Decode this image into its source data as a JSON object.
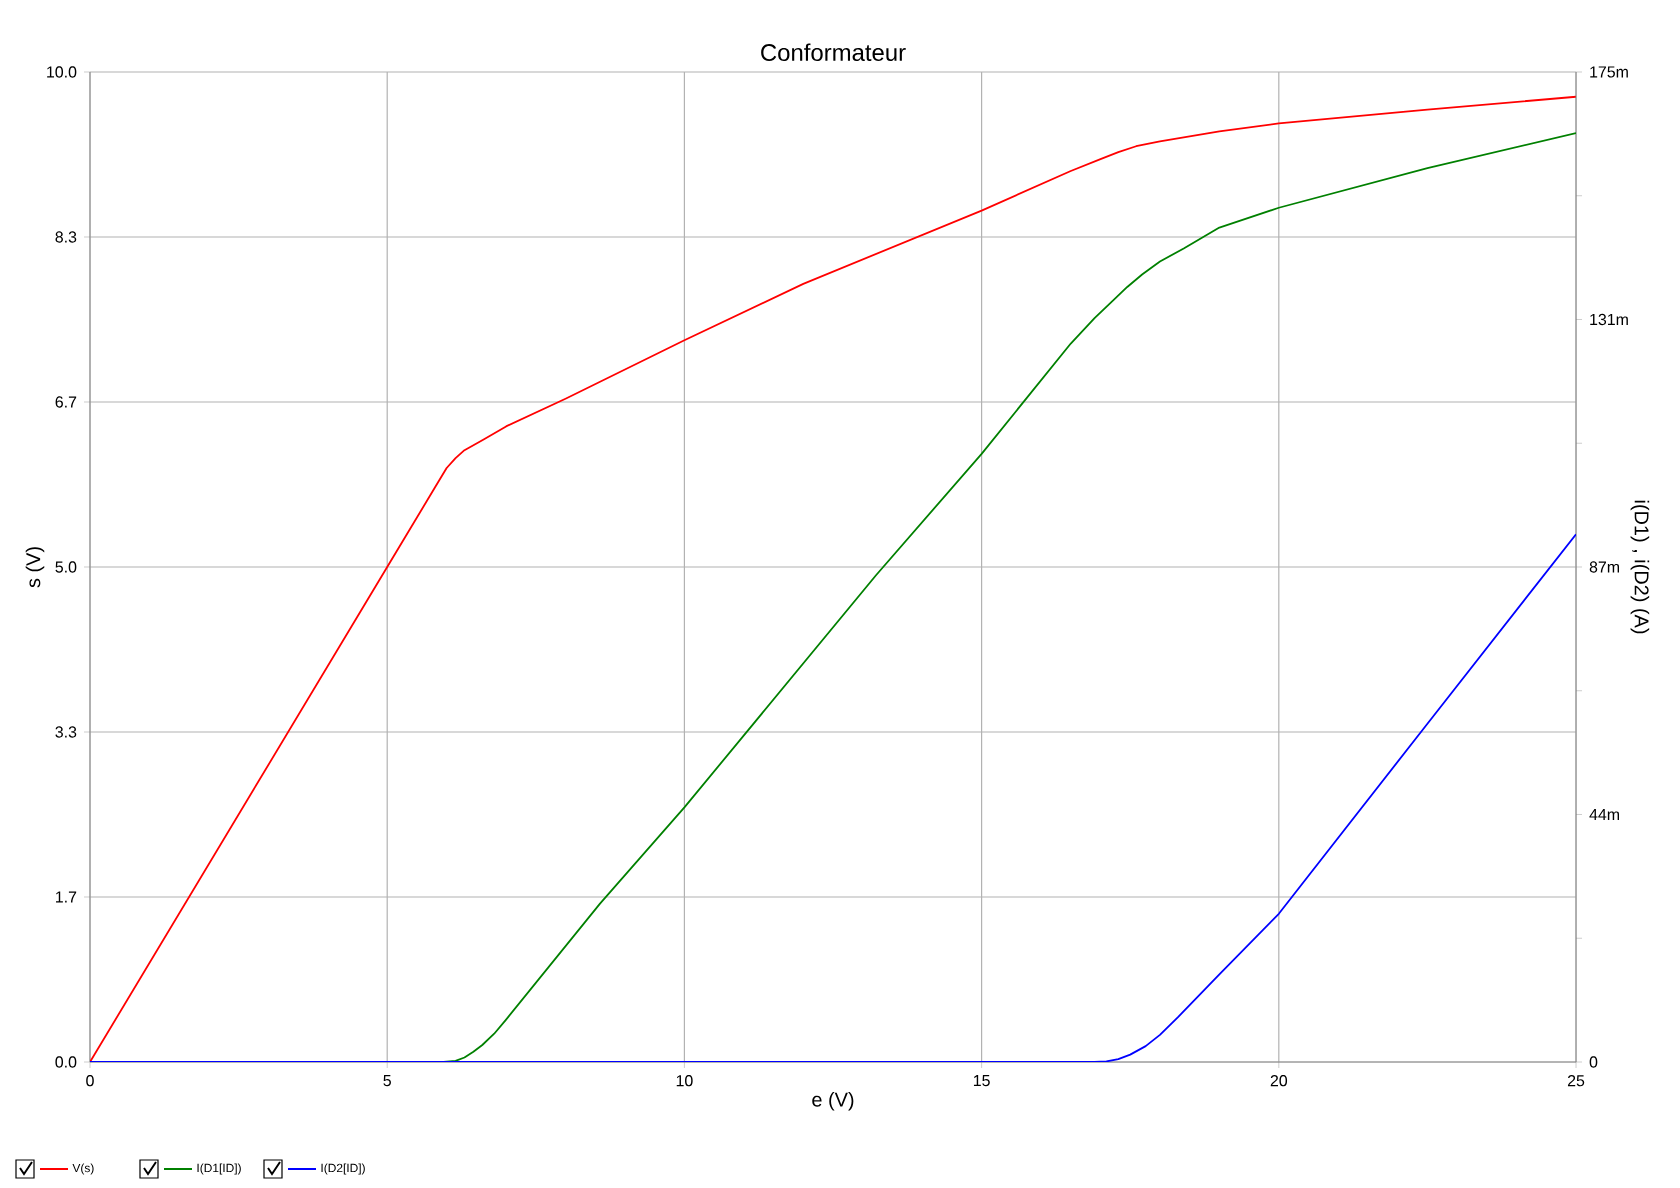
{
  "chart_data": {
    "type": "line",
    "title": "Conformateur",
    "xlabel": "e (V)",
    "ylabel": "s (V)",
    "y2label": "i(D1) , i(D2) (A)",
    "xlim": [
      0,
      25
    ],
    "ylim": [
      0,
      10
    ],
    "y2lim": [
      0,
      175
    ],
    "xticks": [
      0,
      5,
      10,
      15,
      20,
      25
    ],
    "yticks": [
      {
        "value": 0,
        "label": "0.0"
      },
      {
        "value": 1.6667,
        "label": "1.7"
      },
      {
        "value": 3.3333,
        "label": "3.3"
      },
      {
        "value": 5,
        "label": "5.0"
      },
      {
        "value": 6.6667,
        "label": "6.7"
      },
      {
        "value": 8.3333,
        "label": "8.3"
      },
      {
        "value": 10,
        "label": "10.0"
      }
    ],
    "y2ticks": [
      0,
      {
        "value": 21.875,
        "label": null
      },
      {
        "value": 43.75,
        "label": "44m"
      },
      {
        "value": 65.625,
        "label": null
      },
      {
        "value": 87.5,
        "label": "87m"
      },
      {
        "value": 109.375,
        "label": null
      },
      {
        "value": 131.25,
        "label": "131m"
      },
      {
        "value": 153.125,
        "label": null
      },
      {
        "value": 175,
        "label": "175m"
      }
    ],
    "grid": true,
    "legend": "bottom left",
    "marker": "none",
    "line_style": "solid",
    "series": [
      {
        "name": "V(s)",
        "color": "#ff0000",
        "x": [
          0,
          5,
          5.8,
          6.0,
          6.15,
          6.3,
          6.6,
          7,
          8,
          10,
          12,
          15,
          16.5,
          17.0,
          17.3,
          17.6,
          18,
          19,
          20,
          22.5,
          25
        ],
        "values": [
          0,
          5.0,
          5.8,
          6.0,
          6.1,
          6.18,
          6.28,
          6.42,
          6.7,
          7.29,
          7.86,
          8.6,
          9.0,
          9.12,
          9.19,
          9.25,
          9.3,
          9.4,
          9.48,
          9.62,
          9.75
        ]
      },
      {
        "name": "I(D1[ID])",
        "color": "#008000",
        "axis": "y2",
        "x": [
          0,
          5.95,
          6.15,
          6.3,
          6.45,
          6.6,
          6.8,
          7,
          8.58,
          10,
          13.22,
          15,
          16.5,
          16.9,
          17.2,
          17.45,
          17.7,
          18.0,
          18.4,
          19,
          20,
          22.5,
          25
        ],
        "values": [
          0,
          0,
          0.2,
          0.8,
          1.8,
          3.0,
          5.0,
          7.5,
          28,
          45,
          86,
          107.5,
          127,
          131.5,
          134.5,
          137,
          139.2,
          141.5,
          143.8,
          147.5,
          151,
          158,
          164.2
        ]
      },
      {
        "name": "I(D2[ID])",
        "color": "#0000ff",
        "axis": "y2",
        "x": [
          0,
          16.9,
          17.1,
          17.3,
          17.5,
          17.76,
          18.0,
          18.3,
          19,
          20,
          22.5,
          25
        ],
        "values": [
          0,
          0,
          0.1,
          0.5,
          1.3,
          2.8,
          4.8,
          7.9,
          15.5,
          26.2,
          59.8,
          93.3
        ]
      }
    ]
  }
}
